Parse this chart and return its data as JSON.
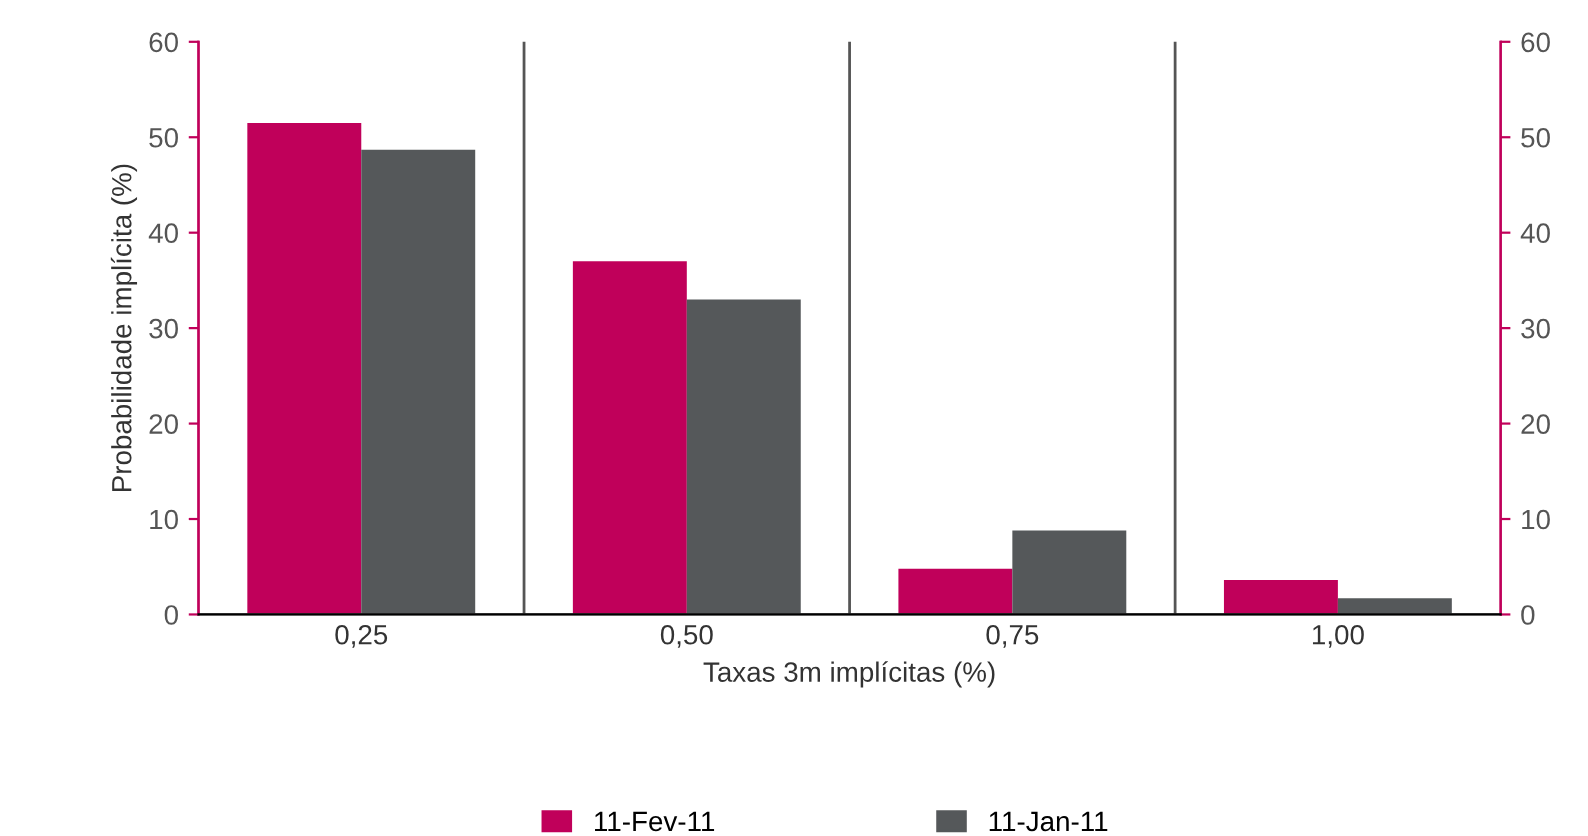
{
  "chart_data": {
    "type": "bar",
    "xlabel": "Taxas 3m implícitas (%)",
    "ylabel": "Probabilidade implícita (%)",
    "categories": [
      "0,25",
      "0,50",
      "0,75",
      "1,00"
    ],
    "series": [
      {
        "name": "11-Fev-11",
        "color": "#c0005a",
        "values": [
          51.5,
          37,
          4.8,
          3.6
        ]
      },
      {
        "name": "11-Jan-11",
        "color": "#55585a",
        "values": [
          48.7,
          33,
          8.8,
          1.7
        ]
      }
    ],
    "ylim": [
      0,
      60
    ],
    "yticks": [
      0,
      10,
      20,
      30,
      40,
      50,
      60
    ],
    "y2lim": [
      0,
      60
    ],
    "y2ticks": [
      0,
      10,
      20,
      30,
      40,
      50,
      60
    ],
    "grid": false,
    "legend": "bottom"
  }
}
